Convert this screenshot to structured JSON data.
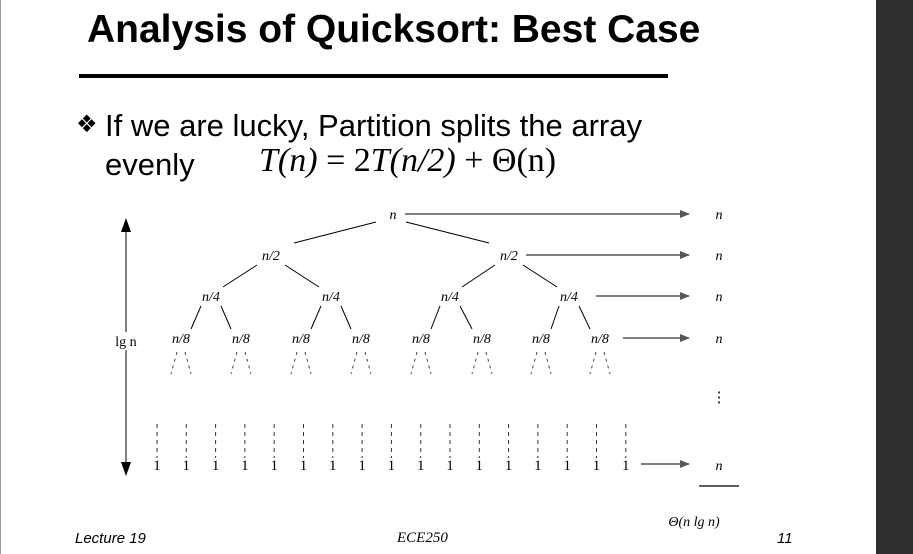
{
  "slide": {
    "title": "Analysis of Quicksort: Best Case",
    "bullet_icon": "diamond-bullet-icon",
    "bullet_line1": "If we are lucky, Partition splits the array",
    "bullet_line2": "evenly",
    "formula": {
      "lhs": "T(n)",
      "eq": " = 2",
      "mid": "T(n/2)",
      "tail": " + Θ(n)"
    }
  },
  "tree": {
    "root": "n",
    "level1": [
      "n/2",
      "n/2"
    ],
    "level2": [
      "n/4",
      "n/4",
      "n/4",
      "n/4"
    ],
    "level3": [
      "n/8",
      "n/8",
      "n/8",
      "n/8",
      "n/8",
      "n/8",
      "n/8",
      "n/8"
    ],
    "leaves": [
      "1",
      "1",
      "1",
      "1",
      "1",
      "1",
      "1",
      "1",
      "1",
      "1",
      "1",
      "1",
      "1",
      "1",
      "1",
      "1",
      "1"
    ],
    "height_label": "lg n",
    "row_costs": [
      "n",
      "n",
      "n",
      "n",
      "⋮",
      "n"
    ],
    "total": "Θ(n lg n)"
  },
  "footer": {
    "left": "Lecture 19",
    "center": "ECE250",
    "right": "11"
  }
}
